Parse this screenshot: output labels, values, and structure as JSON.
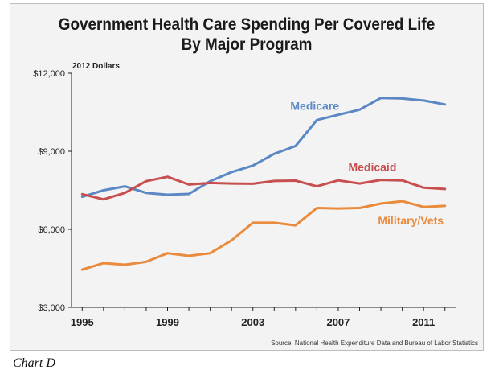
{
  "chart_data": {
    "type": "line",
    "title": "Government Health Care Spending Per Covered Life\nBy Major Program",
    "unit_note": "2012 Dollars",
    "source": "Source: National Health Expenditure Data and Bureau of Labor Statistics",
    "x": [
      1995,
      1996,
      1997,
      1998,
      1999,
      2000,
      2001,
      2002,
      2003,
      2004,
      2005,
      2006,
      2007,
      2008,
      2009,
      2010,
      2011,
      2012
    ],
    "xlim": [
      1994.5,
      2012.5
    ],
    "ylim": [
      3000,
      12000
    ],
    "yticks": [
      3000,
      6000,
      9000,
      12000
    ],
    "ytick_labels": [
      "$3,000",
      "$6,000",
      "$9,000",
      "$12,000"
    ],
    "xticks": [
      1995,
      1999,
      2003,
      2007,
      2011
    ],
    "xtick_labels": [
      "1995",
      "1999",
      "2003",
      "2007",
      "2011"
    ],
    "grid": false,
    "series": [
      {
        "name": "Medicare",
        "color": "#5b88c4",
        "values": [
          7250,
          7500,
          7650,
          7400,
          7330,
          7360,
          7850,
          8200,
          8450,
          8900,
          9200,
          10200,
          10400,
          10600,
          11050,
          11030,
          10950,
          10800
        ]
      },
      {
        "name": "Medicaid",
        "color": "#c84f4f",
        "values": [
          7350,
          7150,
          7400,
          7850,
          8020,
          7720,
          7780,
          7760,
          7750,
          7860,
          7870,
          7650,
          7880,
          7760,
          7900,
          7880,
          7600,
          7550
        ]
      },
      {
        "name": "Military/Vets",
        "color": "#ea8a3c",
        "values": [
          4450,
          4700,
          4640,
          4750,
          5080,
          4980,
          5080,
          5580,
          6250,
          6250,
          6150,
          6820,
          6800,
          6820,
          6990,
          7080,
          6860,
          6900
        ]
      }
    ]
  },
  "caption": "Chart D"
}
